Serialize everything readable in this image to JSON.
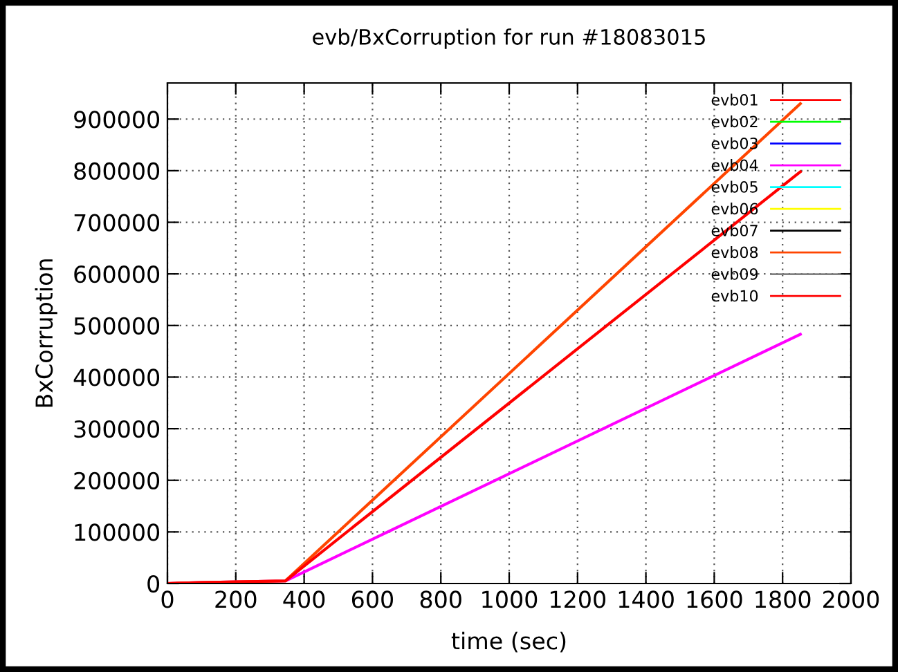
{
  "chart_data": {
    "type": "line",
    "title": "evb/BxCorruption for run #18083015",
    "xlabel": "time (sec)",
    "ylabel": "BxCorruption",
    "x": [
      0,
      100,
      345,
      1852
    ],
    "series": [
      {
        "name": "evb01",
        "color": "#ff0000",
        "values": [
          null,
          null,
          null,
          null
        ]
      },
      {
        "name": "evb02",
        "color": "#00ff00",
        "values": [
          null,
          null,
          null,
          null
        ]
      },
      {
        "name": "evb03",
        "color": "#0000ff",
        "values": [
          null,
          null,
          null,
          null
        ]
      },
      {
        "name": "evb04",
        "color": "#ff00ff",
        "values": [
          0,
          2000,
          5000,
          483000
        ]
      },
      {
        "name": "evb05",
        "color": "#00ffff",
        "values": [
          null,
          null,
          null,
          null
        ]
      },
      {
        "name": "evb06",
        "color": "#ffff00",
        "values": [
          null,
          null,
          null,
          null
        ]
      },
      {
        "name": "evb07",
        "color": "#000000",
        "values": [
          null,
          null,
          null,
          null
        ]
      },
      {
        "name": "evb08",
        "color": "#ff4500",
        "values": [
          0,
          2000,
          5000,
          930000
        ]
      },
      {
        "name": "evb09",
        "color": "#808080",
        "values": [
          null,
          null,
          null,
          null
        ]
      },
      {
        "name": "evb10",
        "color": "#ff0000",
        "values": [
          0,
          2000,
          5000,
          798000
        ]
      }
    ],
    "xlim": [
      0,
      2000
    ],
    "xticks": [
      0,
      200,
      400,
      600,
      800,
      1000,
      1200,
      1400,
      1600,
      1800,
      2000
    ],
    "ylim": [
      0,
      970000
    ],
    "yticks": [
      0,
      100000,
      200000,
      300000,
      400000,
      500000,
      600000,
      700000,
      800000,
      900000
    ],
    "grid": true,
    "legend": "top right",
    "line_style": "solid",
    "marker": "none"
  }
}
